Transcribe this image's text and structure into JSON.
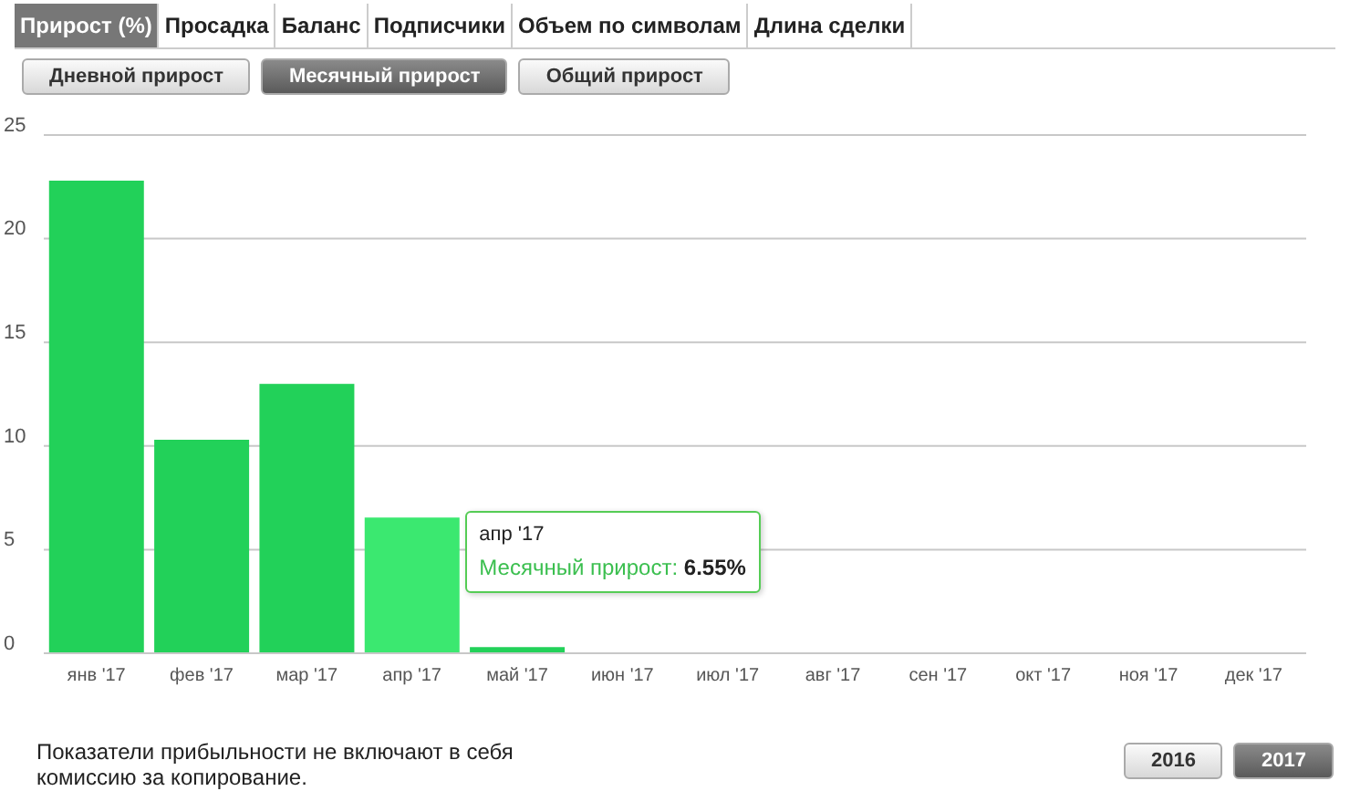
{
  "chart_data": {
    "type": "bar",
    "categories": [
      "янв '17",
      "фев '17",
      "мар '17",
      "апр '17",
      "май '17",
      "июн '17",
      "июл '17",
      "авг '17",
      "сен '17",
      "окт '17",
      "ноя '17",
      "дек '17"
    ],
    "values": [
      22.8,
      10.3,
      13,
      6.55,
      0.3,
      null,
      null,
      null,
      null,
      null,
      null,
      null
    ],
    "colors": [
      "#22d159",
      "#22d159",
      "#22d159",
      "#3be870",
      "#22d159",
      "#22d159",
      "#22d159",
      "#22d159",
      "#22d159",
      "#22d159",
      "#22d159",
      "#22d159"
    ],
    "ylim": [
      0,
      25
    ],
    "yticks": [
      0,
      5,
      10,
      15,
      20,
      25
    ],
    "grid": "y",
    "legend": false,
    "annotations": [
      "Прирост (%)",
      "Просадка",
      "Баланс",
      "Подписчики",
      "Объем по символам",
      "Длина сделки",
      "Дневной прирост",
      "Месячный прирост",
      "Общий прирост",
      "Показатели прибыльности не включают в себя комиссию за копирование.",
      "2016",
      "2017",
      "апр '17\nМесячный прирост: 6.55%"
    ]
  }
}
